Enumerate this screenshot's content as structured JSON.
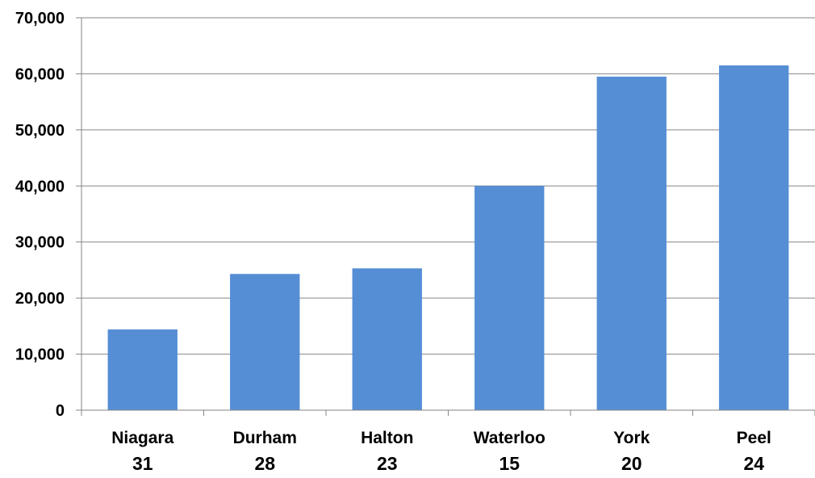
{
  "chart_data": {
    "type": "bar",
    "categories": [
      "Niagara",
      "Durham",
      "Halton",
      "Waterloo",
      "York",
      "Peel"
    ],
    "category_sublabels": [
      "31",
      "28",
      "23",
      "15",
      "20",
      "24"
    ],
    "values": [
      14400,
      24300,
      25300,
      40000,
      59500,
      61500
    ],
    "title": "",
    "xlabel": "",
    "ylabel": "",
    "ylim": [
      0,
      70000
    ],
    "yticks": [
      "0",
      "10,000",
      "20,000",
      "30,000",
      "40,000",
      "50,000",
      "60,000",
      "70,000"
    ],
    "grid": true,
    "legend": "none",
    "bar_color": "#558ed5",
    "grid_color": "#868686"
  }
}
